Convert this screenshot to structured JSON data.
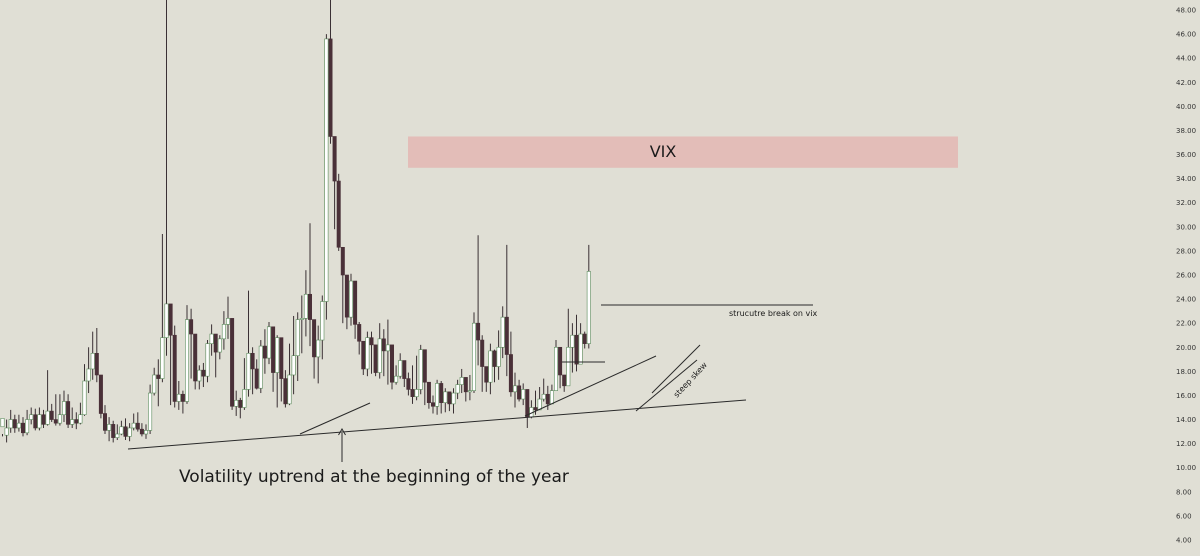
{
  "chart_data": {
    "type": "candlestick",
    "title": "",
    "ylim": [
      4,
      48
    ],
    "y_ticks": [
      "48.00",
      "46.00",
      "44.00",
      "42.00",
      "40.00",
      "38.00",
      "36.00",
      "34.00",
      "32.00",
      "30.00",
      "28.00",
      "26.00",
      "24.00",
      "22.00",
      "20.00",
      "18.00",
      "16.00",
      "14.00",
      "12.00",
      "10.00",
      "8.00",
      "6.00",
      "4.00"
    ],
    "colors": {
      "background": "#e0dfd5",
      "up_body": "#ffffff",
      "up_border": "#5a8a5a",
      "down_body": "#4a3038",
      "wick": "#3a3034",
      "zone": "#e3bdb8",
      "line": "#2a2a2a"
    },
    "zone": {
      "label": "VIX",
      "y_low": 34.9,
      "y_high": 37.5
    },
    "annotations": {
      "main": "Volatility uptrend at the beginning of the year",
      "structure_break": "strucutre break on vix",
      "skew": "steep skew"
    },
    "candles": [
      [
        13.4,
        14.1,
        12.8,
        12.6
      ],
      [
        12.7,
        13.3,
        14.0,
        12.1
      ],
      [
        13.3,
        14.0,
        14.8,
        12.9
      ],
      [
        14.0,
        13.3,
        14.4,
        12.9
      ],
      [
        13.3,
        13.7,
        14.4,
        13.0
      ],
      [
        13.7,
        12.9,
        14.2,
        12.6
      ],
      [
        12.9,
        14.0,
        14.8,
        12.7
      ],
      [
        14.0,
        14.4,
        15.0,
        13.6
      ],
      [
        14.4,
        13.3,
        14.9,
        13.1
      ],
      [
        13.3,
        14.4,
        15.0,
        13.1
      ],
      [
        14.4,
        13.6,
        14.8,
        13.3
      ],
      [
        13.6,
        14.7,
        18.1,
        13.5
      ],
      [
        14.7,
        14.0,
        15.3,
        13.8
      ],
      [
        14.0,
        13.7,
        16.1,
        13.5
      ],
      [
        13.7,
        14.4,
        16.1,
        13.5
      ],
      [
        14.4,
        15.5,
        16.4,
        13.8
      ],
      [
        15.5,
        13.6,
        16.1,
        13.3
      ],
      [
        13.6,
        14.0,
        15.0,
        13.3
      ],
      [
        14.0,
        13.7,
        14.6,
        13.2
      ],
      [
        13.7,
        14.4,
        15.4,
        13.6
      ],
      [
        14.4,
        17.2,
        18.6,
        14.3
      ],
      [
        17.2,
        18.2,
        20.0,
        16.2
      ],
      [
        18.2,
        19.5,
        21.3,
        17.3
      ],
      [
        19.5,
        17.7,
        21.6,
        17.1
      ],
      [
        17.7,
        14.5,
        16.4,
        14.1
      ],
      [
        14.5,
        13.1,
        15.2,
        12.8
      ],
      [
        13.1,
        13.6,
        14.2,
        12.2
      ],
      [
        13.6,
        12.5,
        13.9,
        12.1
      ],
      [
        12.5,
        12.8,
        13.6,
        12.3
      ],
      [
        12.8,
        13.4,
        13.9,
        12.7
      ],
      [
        13.4,
        12.6,
        14.1,
        12.3
      ],
      [
        12.6,
        13.3,
        13.7,
        12.2
      ],
      [
        13.3,
        13.7,
        14.5,
        13.1
      ],
      [
        13.7,
        13.2,
        14.6,
        13.0
      ],
      [
        13.2,
        12.8,
        13.7,
        12.6
      ],
      [
        12.8,
        13.1,
        13.6,
        12.4
      ],
      [
        13.1,
        16.2,
        16.9,
        12.8
      ],
      [
        16.2,
        17.7,
        18.3,
        16.0
      ],
      [
        17.7,
        17.4,
        19.0,
        15.1
      ],
      [
        17.4,
        20.8,
        29.4,
        17.1
      ],
      [
        20.8,
        23.6,
        66.0,
        19.3
      ],
      [
        23.6,
        21.0,
        22.7,
        15.2
      ],
      [
        21.0,
        15.5,
        21.8,
        15.0
      ],
      [
        15.5,
        16.1,
        17.2,
        14.8
      ],
      [
        16.1,
        15.5,
        16.4,
        14.5
      ],
      [
        15.5,
        22.3,
        23.5,
        15.3
      ],
      [
        22.3,
        21.1,
        23.2,
        17.4
      ],
      [
        21.1,
        17.2,
        20.0,
        16.5
      ],
      [
        17.2,
        18.1,
        18.5,
        16.5
      ],
      [
        18.1,
        17.6,
        18.7,
        16.7
      ],
      [
        17.6,
        20.3,
        20.6,
        17.1
      ],
      [
        20.3,
        21.1,
        21.9,
        19.3
      ],
      [
        21.1,
        19.6,
        21.0,
        17.5
      ],
      [
        19.6,
        20.7,
        21.0,
        19.0
      ],
      [
        20.7,
        21.9,
        23.0,
        19.8
      ],
      [
        21.9,
        22.4,
        24.2,
        20.7
      ],
      [
        22.4,
        15.1,
        20.7,
        14.8
      ],
      [
        15.1,
        15.6,
        16.4,
        14.3
      ],
      [
        15.6,
        15.0,
        15.8,
        14.1
      ],
      [
        15.0,
        16.5,
        19.1,
        14.8
      ],
      [
        16.5,
        19.5,
        24.7,
        15.9
      ],
      [
        19.5,
        18.2,
        20.0,
        16.1
      ],
      [
        18.2,
        16.6,
        19.0,
        16.5
      ],
      [
        16.6,
        20.1,
        20.6,
        16.2
      ],
      [
        20.1,
        19.1,
        21.5,
        17.8
      ],
      [
        19.1,
        21.7,
        22.1,
        18.6
      ],
      [
        21.7,
        17.9,
        20.4,
        16.3
      ],
      [
        17.9,
        20.8,
        21.0,
        15.0
      ],
      [
        20.8,
        17.4,
        18.7,
        15.5
      ],
      [
        17.4,
        15.3,
        18.1,
        15.0
      ],
      [
        15.3,
        17.7,
        20.3,
        15.2
      ],
      [
        17.7,
        19.3,
        22.6,
        16.1
      ],
      [
        19.3,
        22.3,
        22.9,
        17.2
      ],
      [
        22.3,
        22.4,
        24.3,
        19.5
      ],
      [
        22.4,
        24.4,
        26.4,
        20.9
      ],
      [
        24.4,
        22.3,
        30.3,
        20.1
      ],
      [
        22.3,
        19.2,
        20.1,
        17.4
      ],
      [
        19.2,
        20.6,
        21.8,
        17.0
      ],
      [
        20.6,
        23.8,
        24.3,
        19.0
      ],
      [
        23.8,
        45.6,
        46.0,
        22.3
      ],
      [
        45.6,
        37.5,
        90.0,
        36.9
      ],
      [
        37.5,
        33.8,
        34.8,
        29.8
      ],
      [
        33.8,
        28.3,
        34.4,
        28.0
      ],
      [
        28.3,
        26.0,
        27.1,
        22.0
      ],
      [
        26.0,
        22.5,
        24.0,
        21.5
      ],
      [
        22.5,
        25.5,
        26.1,
        21.8
      ],
      [
        25.5,
        21.9,
        23.3,
        20.7
      ],
      [
        21.9,
        20.5,
        22.1,
        19.4
      ],
      [
        20.5,
        18.2,
        19.0,
        17.7
      ],
      [
        18.2,
        20.8,
        21.3,
        17.6
      ],
      [
        20.8,
        20.2,
        21.3,
        17.8
      ],
      [
        20.2,
        17.9,
        18.8,
        17.6
      ],
      [
        17.9,
        20.7,
        22.0,
        17.4
      ],
      [
        20.7,
        19.7,
        21.5,
        17.6
      ],
      [
        19.7,
        20.2,
        22.3,
        16.9
      ],
      [
        20.2,
        17.1,
        18.7,
        16.5
      ],
      [
        17.1,
        17.6,
        18.5,
        16.9
      ],
      [
        17.6,
        18.9,
        19.5,
        17.4
      ],
      [
        18.9,
        17.4,
        18.2,
        16.7
      ],
      [
        17.4,
        16.5,
        17.9,
        16.0
      ],
      [
        16.5,
        15.9,
        18.5,
        15.3
      ],
      [
        15.9,
        16.5,
        19.3,
        15.6
      ],
      [
        16.5,
        19.8,
        20.2,
        16.1
      ],
      [
        19.8,
        17.1,
        18.8,
        15.2
      ],
      [
        17.1,
        15.4,
        16.7,
        14.9
      ],
      [
        15.4,
        15.1,
        16.0,
        14.5
      ],
      [
        15.1,
        17.0,
        17.3,
        14.4
      ],
      [
        17.0,
        15.4,
        17.2,
        14.5
      ],
      [
        15.4,
        16.3,
        16.6,
        14.6
      ],
      [
        16.3,
        15.3,
        16.0,
        14.7
      ],
      [
        15.3,
        16.2,
        16.6,
        14.5
      ],
      [
        16.2,
        16.9,
        17.3,
        15.7
      ],
      [
        16.9,
        17.5,
        18.2,
        16.2
      ],
      [
        17.5,
        16.3,
        17.1,
        15.5
      ],
      [
        16.3,
        16.4,
        17.7,
        15.6
      ],
      [
        16.4,
        22.0,
        22.9,
        16.2
      ],
      [
        22.0,
        20.6,
        29.3,
        18.5
      ],
      [
        20.6,
        18.4,
        21.0,
        16.3
      ],
      [
        18.4,
        17.1,
        17.5,
        16.3
      ],
      [
        17.1,
        19.7,
        20.3,
        16.1
      ],
      [
        19.7,
        18.4,
        19.8,
        17.1
      ],
      [
        18.4,
        20.0,
        21.4,
        17.3
      ],
      [
        20.0,
        22.5,
        23.4,
        19.1
      ],
      [
        22.5,
        19.4,
        28.5,
        17.6
      ],
      [
        19.4,
        16.3,
        21.3,
        15.9
      ],
      [
        16.3,
        16.8,
        17.9,
        15.0
      ],
      [
        16.8,
        15.7,
        17.3,
        15.5
      ],
      [
        15.7,
        16.5,
        17.0,
        15.2
      ],
      [
        16.5,
        14.2,
        15.1,
        13.3
      ],
      [
        14.2,
        15.0,
        15.6,
        14.1
      ],
      [
        15.0,
        14.8,
        16.4,
        14.4
      ],
      [
        14.8,
        15.7,
        16.7,
        15.1
      ],
      [
        15.7,
        16.1,
        17.4,
        15.5
      ],
      [
        16.1,
        15.3,
        16.8,
        14.8
      ],
      [
        15.3,
        16.4,
        16.9,
        15.7
      ],
      [
        16.4,
        20.0,
        20.6,
        17.9
      ],
      [
        20.0,
        17.7,
        19.2,
        16.6
      ],
      [
        17.7,
        16.8,
        17.7,
        16.3
      ],
      [
        16.8,
        20.0,
        23.2,
        17.5
      ],
      [
        20.0,
        21.0,
        22.0,
        17.9
      ],
      [
        21.0,
        18.6,
        22.7,
        18.0
      ],
      [
        18.6,
        21.1,
        22.0,
        19.2
      ],
      [
        21.1,
        20.3,
        21.3,
        19.9
      ],
      [
        20.3,
        26.3,
        28.5,
        19.9
      ]
    ]
  }
}
